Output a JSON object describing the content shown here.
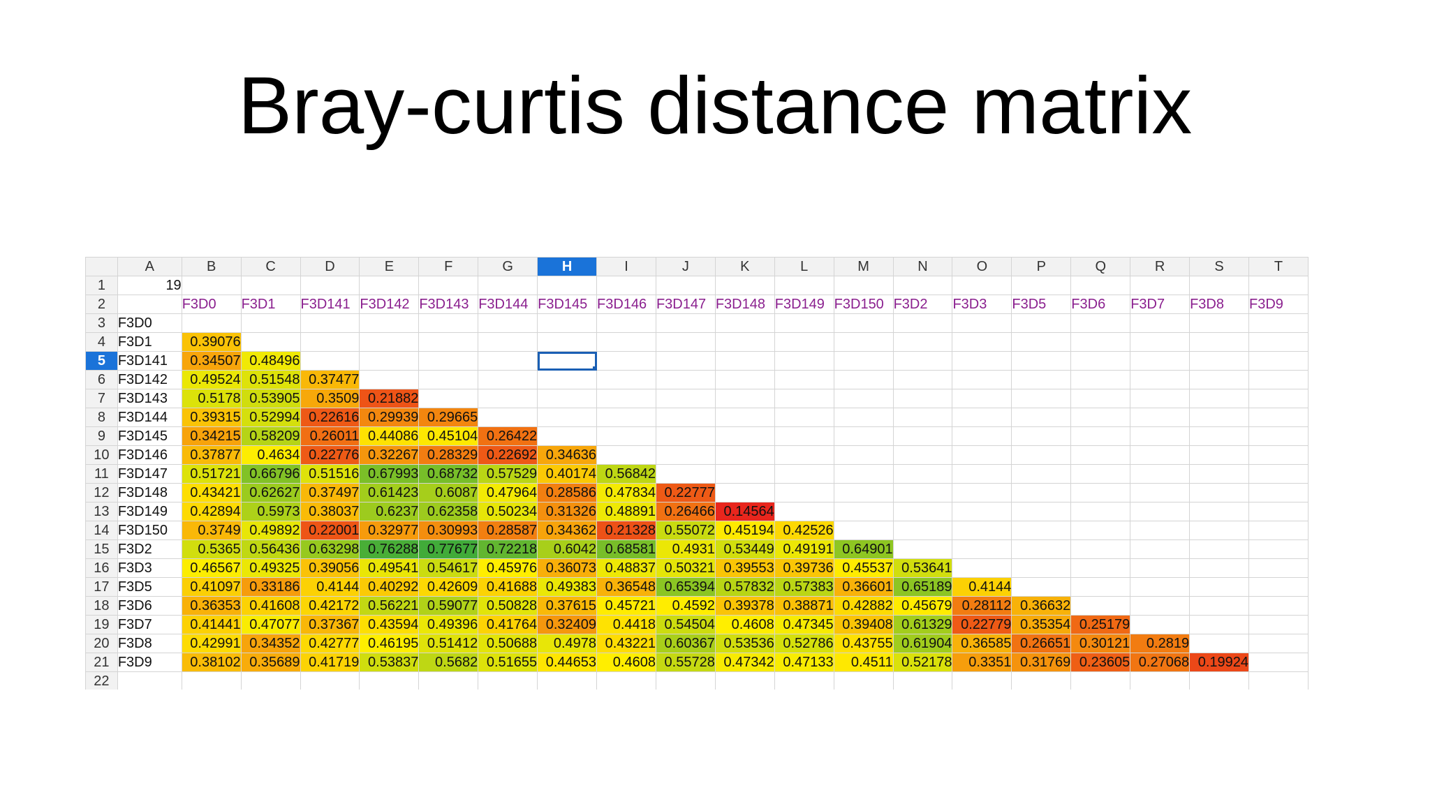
{
  "slide": {
    "title": "Bray-curtis distance matrix"
  },
  "sheet": {
    "columns": [
      "A",
      "B",
      "C",
      "D",
      "E",
      "F",
      "G",
      "H",
      "I",
      "J",
      "K",
      "L",
      "M",
      "N",
      "O",
      "P",
      "Q",
      "R",
      "S",
      "T"
    ],
    "active_column": "H",
    "active_row": 5,
    "cell_A1": "19",
    "header_labels": [
      "F3D0",
      "F3D1",
      "F3D141",
      "F3D142",
      "F3D143",
      "F3D144",
      "F3D145",
      "F3D146",
      "F3D147",
      "F3D148",
      "F3D149",
      "F3D150",
      "F3D2",
      "F3D3",
      "F3D5",
      "F3D6",
      "F3D7",
      "F3D8",
      "F3D9"
    ],
    "row_labels": [
      "F3D0",
      "F3D1",
      "F3D141",
      "F3D142",
      "F3D143",
      "F3D144",
      "F3D145",
      "F3D146",
      "F3D147",
      "F3D148",
      "F3D149",
      "F3D150",
      "F3D2",
      "F3D3",
      "F3D5",
      "F3D6",
      "F3D7",
      "F3D8",
      "F3D9"
    ],
    "matrix": [
      [],
      [
        "0.39076"
      ],
      [
        "0.34507",
        "0.48496"
      ],
      [
        "0.49524",
        "0.51548",
        "0.37477"
      ],
      [
        "0.5178",
        "0.53905",
        "0.3509",
        "0.21882"
      ],
      [
        "0.39315",
        "0.52994",
        "0.22616",
        "0.29939",
        "0.29665"
      ],
      [
        "0.34215",
        "0.58209",
        "0.26011",
        "0.44086",
        "0.45104",
        "0.26422"
      ],
      [
        "0.37877",
        "0.4634",
        "0.22776",
        "0.32267",
        "0.28329",
        "0.22692",
        "0.34636"
      ],
      [
        "0.51721",
        "0.66796",
        "0.51516",
        "0.67993",
        "0.68732",
        "0.57529",
        "0.40174",
        "0.56842"
      ],
      [
        "0.43421",
        "0.62627",
        "0.37497",
        "0.61423",
        "0.6087",
        "0.47964",
        "0.28586",
        "0.47834",
        "0.22777"
      ],
      [
        "0.42894",
        "0.5973",
        "0.38037",
        "0.6237",
        "0.62358",
        "0.50234",
        "0.31326",
        "0.48891",
        "0.26466",
        "0.14564"
      ],
      [
        "0.3749",
        "0.49892",
        "0.22001",
        "0.32977",
        "0.30993",
        "0.28587",
        "0.34362",
        "0.21328",
        "0.55072",
        "0.45194",
        "0.42526"
      ],
      [
        "0.5365",
        "0.56436",
        "0.63298",
        "0.76288",
        "0.77677",
        "0.72218",
        "0.6042",
        "0.68581",
        "0.4931",
        "0.53449",
        "0.49191",
        "0.64901"
      ],
      [
        "0.46567",
        "0.49325",
        "0.39056",
        "0.49541",
        "0.54617",
        "0.45976",
        "0.36073",
        "0.48837",
        "0.50321",
        "0.39553",
        "0.39736",
        "0.45537",
        "0.53641"
      ],
      [
        "0.41097",
        "0.33186",
        "0.4144",
        "0.40292",
        "0.42609",
        "0.41688",
        "0.49383",
        "0.36548",
        "0.65394",
        "0.57832",
        "0.57383",
        "0.36601",
        "0.65189",
        "0.4144"
      ],
      [
        "0.36353",
        "0.41608",
        "0.42172",
        "0.56221",
        "0.59077",
        "0.50828",
        "0.37615",
        "0.45721",
        "0.4592",
        "0.39378",
        "0.38871",
        "0.42882",
        "0.45679",
        "0.28112",
        "0.36632"
      ],
      [
        "0.41441",
        "0.47077",
        "0.37367",
        "0.43594",
        "0.49396",
        "0.41764",
        "0.32409",
        "0.4418",
        "0.54504",
        "0.4608",
        "0.47345",
        "0.39408",
        "0.61329",
        "0.22779",
        "0.35354",
        "0.25179"
      ],
      [
        "0.42991",
        "0.34352",
        "0.42777",
        "0.46195",
        "0.51412",
        "0.50688",
        "0.4978",
        "0.43221",
        "0.60367",
        "0.53536",
        "0.52786",
        "0.43755",
        "0.61904",
        "0.36585",
        "0.26651",
        "0.30121",
        "0.2819"
      ],
      [
        "0.38102",
        "0.35689",
        "0.41719",
        "0.53837",
        "0.5682",
        "0.51655",
        "0.44653",
        "0.4608",
        "0.55728",
        "0.47342",
        "0.47133",
        "0.4511",
        "0.52178",
        "0.3351",
        "0.31769",
        "0.23605",
        "0.27068",
        "0.19924"
      ]
    ],
    "color_scale": {
      "low": "#e8221e",
      "mid": "#ffee00",
      "high": "#3faa3a",
      "min": 0.14,
      "max": 0.78
    }
  }
}
